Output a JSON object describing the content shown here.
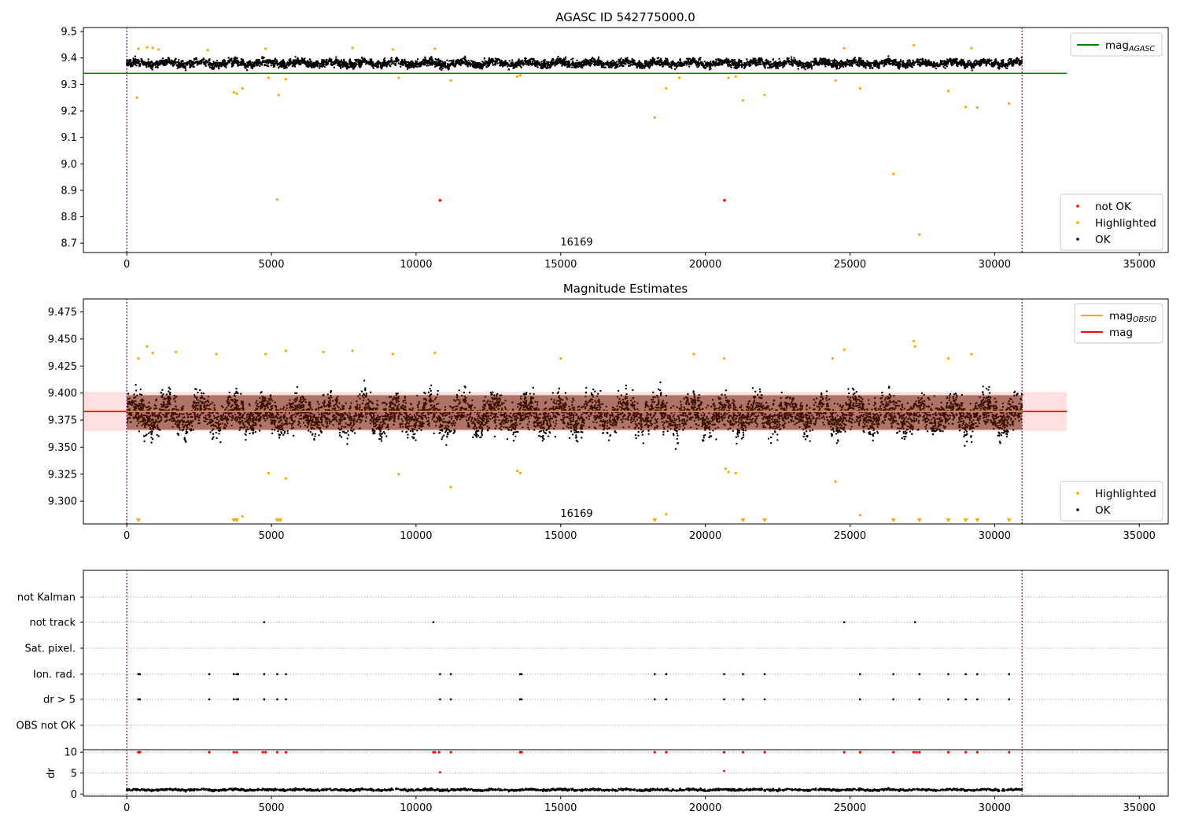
{
  "chart_data": [
    {
      "type": "scatter",
      "title": "AGASC ID 542775000.0",
      "xlim": [
        -1500,
        36000
      ],
      "ylim": [
        8.665,
        9.515
      ],
      "xticks": [
        0,
        5000,
        10000,
        15000,
        20000,
        25000,
        30000,
        35000
      ],
      "yticks": [
        8.7,
        8.8,
        8.9,
        9.0,
        9.1,
        9.2,
        9.3,
        9.4,
        9.5
      ],
      "obsid_annotation": "16169",
      "vlines": [
        0,
        30950
      ],
      "series": [
        {
          "name": "mag",
          "label_sub": "AGASC",
          "kind": "line",
          "color": "#008000",
          "y": 9.342,
          "x_range": [
            -1500,
            32500
          ]
        },
        {
          "name": "not OK",
          "kind": "points",
          "color": "#ff0000",
          "points": [
            [
              10830,
              8.862
            ],
            [
              20660,
              8.862
            ]
          ]
        },
        {
          "name": "Highlighted",
          "kind": "points",
          "color": "#ffa500",
          "points": [
            [
              350,
              9.25
            ],
            [
              3700,
              9.27
            ],
            [
              3800,
              9.265
            ],
            [
              4000,
              9.285
            ],
            [
              4900,
              9.325
            ],
            [
              5200,
              8.865
            ],
            [
              5250,
              9.26
            ],
            [
              5500,
              9.32
            ],
            [
              9400,
              9.325
            ],
            [
              11200,
              9.315
            ],
            [
              18250,
              9.175
            ],
            [
              18650,
              9.285
            ],
            [
              19100,
              9.325
            ],
            [
              20800,
              9.325
            ],
            [
              21050,
              9.33
            ],
            [
              21300,
              9.24
            ],
            [
              22050,
              9.26
            ],
            [
              24500,
              9.315
            ],
            [
              25350,
              9.285
            ],
            [
              26500,
              8.962
            ],
            [
              27400,
              8.733
            ],
            [
              28400,
              9.275
            ],
            [
              29000,
              9.215
            ],
            [
              29400,
              9.213
            ],
            [
              30500,
              9.228
            ],
            [
              400,
              9.435
            ],
            [
              700,
              9.44
            ],
            [
              900,
              9.438
            ],
            [
              1100,
              9.432
            ],
            [
              2800,
              9.43
            ],
            [
              4800,
              9.435
            ],
            [
              7800,
              9.438
            ],
            [
              9200,
              9.432
            ],
            [
              10650,
              9.435
            ],
            [
              13500,
              9.33
            ],
            [
              13600,
              9.335
            ],
            [
              24800,
              9.437
            ],
            [
              27200,
              9.448
            ],
            [
              29200,
              9.437
            ]
          ]
        },
        {
          "name": "OK",
          "kind": "band",
          "color": "#000000",
          "x_range": [
            0,
            30950
          ],
          "center": 9.38,
          "spread": 0.026
        }
      ]
    },
    {
      "type": "scatter",
      "title": "Magnitude Estimates",
      "xlim": [
        -1500,
        36000
      ],
      "ylim": [
        9.279,
        9.487
      ],
      "xticks": [
        0,
        5000,
        10000,
        15000,
        20000,
        25000,
        30000,
        35000
      ],
      "yticks": [
        9.3,
        9.325,
        9.35,
        9.375,
        9.4,
        9.425,
        9.45,
        9.475
      ],
      "obsid_annotation": "16169",
      "vlines": [
        0,
        30950
      ],
      "series": [
        {
          "name": "mag",
          "label_sub": "OBSID",
          "kind": "line",
          "color": "#ffa500",
          "y": 9.383,
          "x_range": [
            0,
            30950
          ]
        },
        {
          "name": "mag",
          "kind": "line",
          "color": "#ff0000",
          "y": 9.383,
          "x_range": [
            -1500,
            32500
          ],
          "band": [
            9.365,
            9.401
          ]
        },
        {
          "name": "Highlighted",
          "kind": "points",
          "color": "#ffa500",
          "points": [
            [
              4900,
              9.326
            ],
            [
              5500,
              9.321
            ],
            [
              9400,
              9.325
            ],
            [
              11200,
              9.313
            ],
            [
              13500,
              9.328
            ],
            [
              13600,
              9.326
            ],
            [
              20700,
              9.33
            ],
            [
              20800,
              9.327
            ],
            [
              21050,
              9.326
            ],
            [
              24500,
              9.318
            ],
            [
              4000,
              9.286
            ],
            [
              18650,
              9.288
            ],
            [
              25350,
              9.287
            ],
            [
              400,
              9.432
            ],
            [
              700,
              9.443
            ],
            [
              900,
              9.437
            ],
            [
              1700,
              9.438
            ],
            [
              3100,
              9.436
            ],
            [
              4800,
              9.436
            ],
            [
              5500,
              9.439
            ],
            [
              6800,
              9.438
            ],
            [
              7800,
              9.439
            ],
            [
              9200,
              9.436
            ],
            [
              10650,
              9.437
            ],
            [
              15000,
              9.432
            ],
            [
              19600,
              9.436
            ],
            [
              20650,
              9.432
            ],
            [
              24400,
              9.432
            ],
            [
              24800,
              9.44
            ],
            [
              27200,
              9.448
            ],
            [
              27250,
              9.443
            ],
            [
              28400,
              9.432
            ],
            [
              29200,
              9.436
            ]
          ]
        },
        {
          "name": "Highlighted",
          "kind": "markers_bottom",
          "color": "#ffa500",
          "x": [
            400,
            3700,
            3800,
            5200,
            5300,
            18250,
            21300,
            22050,
            26500,
            27400,
            28400,
            29000,
            29400,
            30500
          ]
        },
        {
          "name": "OK",
          "kind": "band",
          "color": "#000000",
          "x_range": [
            0,
            30950
          ],
          "center": 9.38,
          "spread": 0.028
        }
      ]
    },
    {
      "type": "scatter",
      "title": "",
      "xlim": [
        -1500,
        36000
      ],
      "xticks": [
        0,
        5000,
        10000,
        15000,
        20000,
        25000,
        30000,
        35000
      ],
      "vlines": [
        0,
        30950
      ],
      "flag_rows": [
        "not Kalman",
        "not track",
        "Sat. pixel.",
        "Ion. rad.",
        "dr > 5",
        "OBS not OK"
      ],
      "flags": {
        "not track": [
          4750,
          10600,
          24800,
          27250
        ],
        "Ion. rad.": [
          400,
          450,
          2850,
          3700,
          3800,
          3850,
          4750,
          5200,
          5500,
          10830,
          11200,
          13600,
          13650,
          18250,
          18650,
          20650,
          21300,
          22050,
          25350,
          26500,
          27400,
          28400,
          29000,
          29400,
          30500
        ],
        "dr > 5": [
          400,
          450,
          2850,
          3700,
          3800,
          3850,
          4750,
          5200,
          5500,
          10830,
          11200,
          13600,
          13650,
          18250,
          18650,
          20650,
          21300,
          22050,
          25350,
          26500,
          27400,
          28400,
          29000,
          29400,
          30500
        ]
      },
      "dr_axis": {
        "ylabel": "dr",
        "ylim": [
          -0.5,
          10.6
        ],
        "yticks": [
          0,
          5,
          10
        ],
        "clip_points": [
          400,
          450,
          2850,
          3700,
          3800,
          4700,
          4800,
          5200,
          5500,
          10600,
          10650,
          10800,
          11200,
          13600,
          13650,
          18250,
          18650,
          20650,
          21300,
          22050,
          24800,
          25350,
          26500,
          27200,
          27300,
          27400,
          28400,
          29000,
          29400,
          30500
        ],
        "mid_points": [
          [
            10830,
            5.2
          ],
          [
            20650,
            5.5
          ]
        ],
        "baseline": {
          "center": 1.0,
          "spread": 0.45,
          "x_range": [
            0,
            30950
          ]
        }
      }
    }
  ],
  "legends": {
    "panel1_top": [
      {
        "text": "mag",
        "sub": "AGASC",
        "color": "#008000"
      }
    ],
    "panel1_bottom": [
      {
        "text": "not OK",
        "color": "#ff0000"
      },
      {
        "text": "Highlighted",
        "color": "#ffa500"
      },
      {
        "text": "OK",
        "color": "#000000"
      }
    ],
    "panel2_top": [
      {
        "text": "mag",
        "sub": "OBSID",
        "color": "#ffa500"
      },
      {
        "text": "mag",
        "color": "#ff0000"
      }
    ],
    "panel2_bottom": [
      {
        "text": "Highlighted",
        "color": "#ffa500"
      },
      {
        "text": "OK",
        "color": "#000000"
      }
    ]
  }
}
